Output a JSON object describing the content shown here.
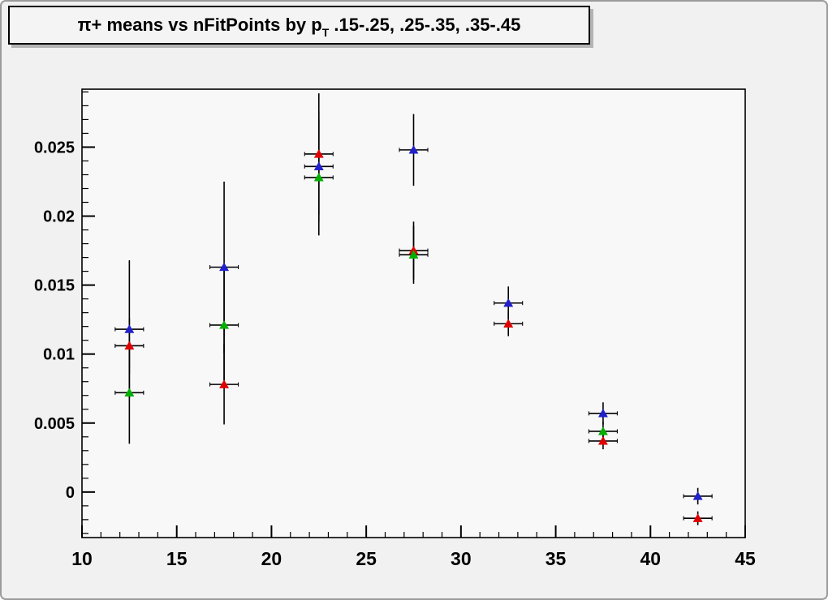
{
  "window": {
    "bg_color": "#f1f1f1",
    "plot_bg_color": "#f8f8f8",
    "border_color": "#9b9b9b",
    "title_pave_bg": "#f4f4f4"
  },
  "title": {
    "part1": "π+ means vs nFitPoints by p",
    "sub": "T",
    "part2": " .15-.25, .25-.35, .35-.45"
  },
  "chart_data": {
    "type": "scatter",
    "title": "π+ means vs nFitPoints by pT .15-.25, .25-.35, .35-.45",
    "xlabel": "",
    "ylabel": "",
    "xlim": [
      10,
      45
    ],
    "ylim": [
      -0.0033,
      0.0292
    ],
    "grid": false,
    "legend": "none",
    "x_major_ticks": [
      10,
      15,
      20,
      25,
      30,
      35,
      40,
      45
    ],
    "x_tick_labels": [
      "10",
      "15",
      "20",
      "25",
      "30",
      "35",
      "40",
      "45"
    ],
    "x_minor_step": 1,
    "y_major_ticks": [
      0,
      0.005,
      0.01,
      0.015,
      0.02,
      0.025
    ],
    "y_tick_labels": [
      "0",
      "0.005",
      "0.01",
      "0.015",
      "0.02",
      "0.025"
    ],
    "y_minor_step": 0.001,
    "xerr": 0.75,
    "marker": "triangle-up",
    "error_bar_color": "#000000",
    "series": [
      {
        "name": "series-red",
        "color": "#e00000",
        "points": [
          {
            "x": 12.5,
            "y": 0.0106,
            "ey": 0.002
          },
          {
            "x": 17.5,
            "y": 0.0078,
            "ey": 0.0029
          },
          {
            "x": 22.5,
            "y": 0.0245,
            "ey": 0.0044
          },
          {
            "x": 27.5,
            "y": 0.0175,
            "ey": 0.0021
          },
          {
            "x": 32.5,
            "y": 0.0122,
            "ey": 0.0009
          },
          {
            "x": 37.5,
            "y": 0.0037,
            "ey": 0.0006
          },
          {
            "x": 42.5,
            "y": -0.0019,
            "ey": 0.0005
          }
        ]
      },
      {
        "name": "series-green",
        "color": "#00b000",
        "points": [
          {
            "x": 12.5,
            "y": 0.0072,
            "ey": 0.0037
          },
          {
            "x": 17.5,
            "y": 0.0121,
            "ey": 0.004
          },
          {
            "x": 22.5,
            "y": 0.0228,
            "ey": 0.0042
          },
          {
            "x": 27.5,
            "y": 0.0172,
            "ey": 0.0021
          },
          {
            "x": 37.5,
            "y": 0.0044,
            "ey": 0.0007
          }
        ]
      },
      {
        "name": "series-blue",
        "color": "#2020cc",
        "points": [
          {
            "x": 12.5,
            "y": 0.0118,
            "ey": 0.005
          },
          {
            "x": 17.5,
            "y": 0.0163,
            "ey": 0.0062
          },
          {
            "x": 22.5,
            "y": 0.0236,
            "ey": 0.004
          },
          {
            "x": 27.5,
            "y": 0.0248,
            "ey": 0.0026
          },
          {
            "x": 32.5,
            "y": 0.0137,
            "ey": 0.0012
          },
          {
            "x": 37.5,
            "y": 0.0057,
            "ey": 0.0008
          },
          {
            "x": 42.5,
            "y": -0.0003,
            "ey": 0.0006
          }
        ]
      }
    ]
  }
}
